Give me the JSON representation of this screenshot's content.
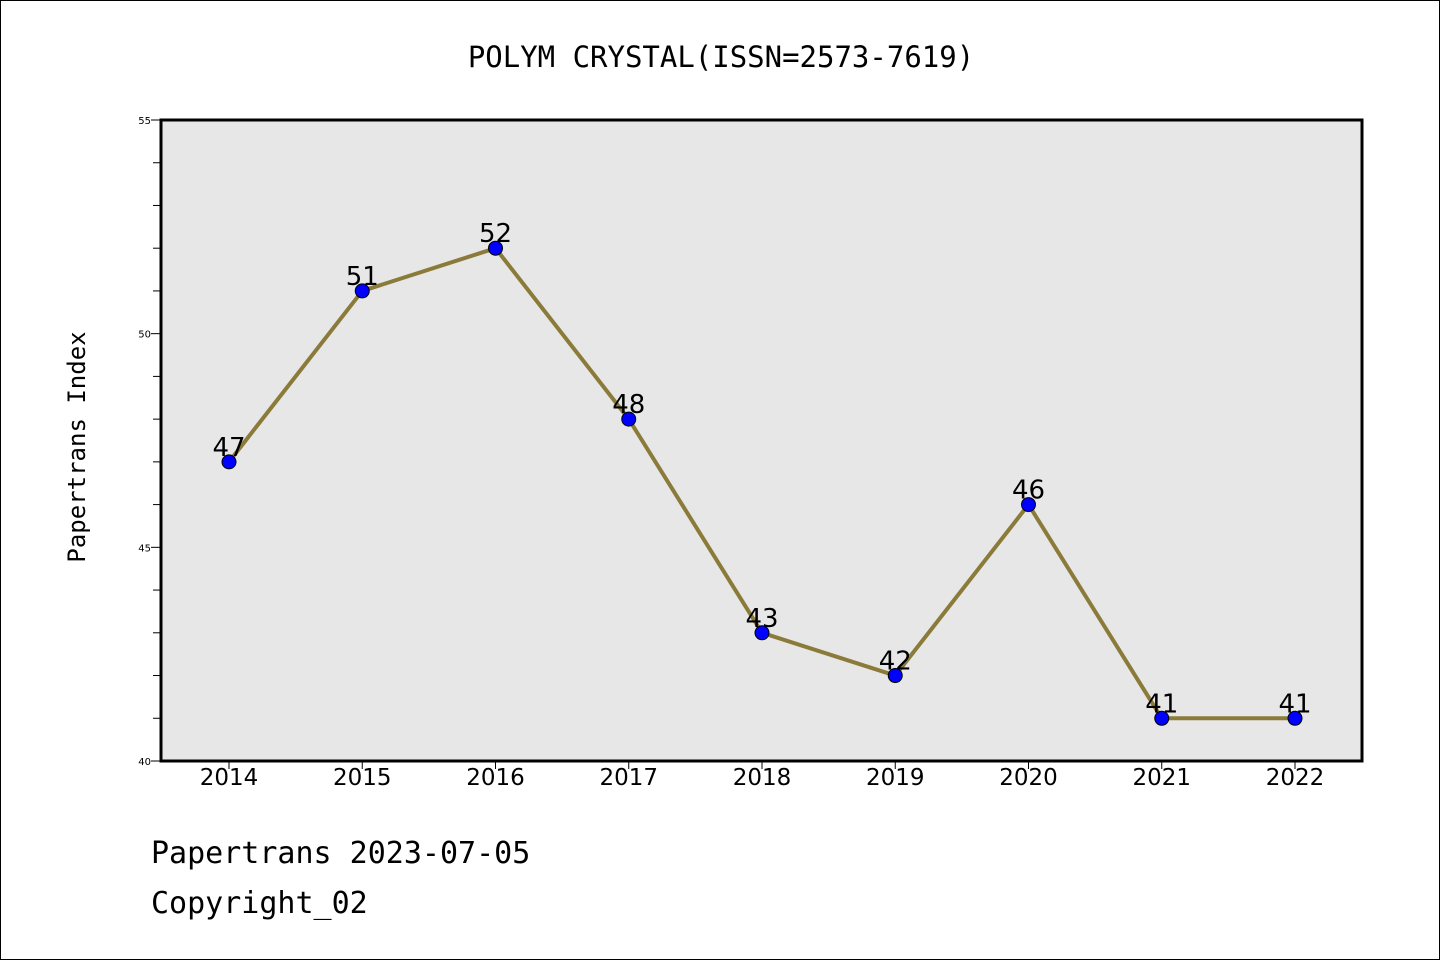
{
  "chart_data": {
    "type": "line",
    "title": "POLYM CRYSTAL(ISSN=2573-7619)",
    "xlabel": "",
    "ylabel": "Papertrans Index",
    "categories": [
      "2014",
      "2015",
      "2016",
      "2017",
      "2018",
      "2019",
      "2020",
      "2021",
      "2022"
    ],
    "series": [
      {
        "values": [
          47,
          51,
          52,
          48,
          43,
          42,
          46,
          41,
          41
        ]
      }
    ],
    "ylim": [
      40,
      55
    ],
    "yticks": [
      "40",
      "45",
      "50",
      "55"
    ],
    "grid": false,
    "legend": "none",
    "colors": {
      "line": "#8B7B3A",
      "marker": "#0000FF",
      "plot_bg": "#E7E7E7"
    }
  },
  "footer": {
    "line1": "Papertrans 2023-07-05",
    "line2": "Copyright_02"
  }
}
